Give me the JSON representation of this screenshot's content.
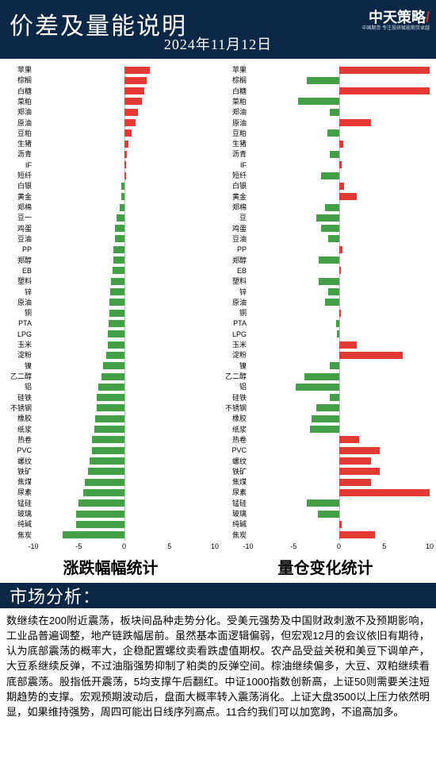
{
  "header": {
    "title": "价差及量能说明",
    "date": "2024年11月12日",
    "logo_main": "中天",
    "logo_suffix": "策略",
    "logo_slash": "/",
    "logo_sub": "中国期货 专注投研赋能期货卓越"
  },
  "axis": {
    "min": -10,
    "max": 10,
    "ticks": [
      -10,
      -5,
      0,
      5,
      10
    ]
  },
  "colors": {
    "pos": "#e53935",
    "neg": "#43a047",
    "bg": "#ffffff",
    "header_bg": "#0a2845"
  },
  "left_chart": {
    "title": "涨跌幅幅统计",
    "rows": [
      {
        "label": "苹果",
        "v": 2.8
      },
      {
        "label": "棕榈",
        "v": 2.5
      },
      {
        "label": "白糖",
        "v": 2.2
      },
      {
        "label": "菜粕",
        "v": 2.0
      },
      {
        "label": "郑油",
        "v": 1.5
      },
      {
        "label": "原油",
        "v": 1.3
      },
      {
        "label": "豆粕",
        "v": 0.8
      },
      {
        "label": "生猪",
        "v": 0.5
      },
      {
        "label": "沥青",
        "v": 0.3
      },
      {
        "label": "IF",
        "v": 0.2
      },
      {
        "label": "短纤",
        "v": 0.2
      },
      {
        "label": "白银",
        "v": -0.3
      },
      {
        "label": "黄金",
        "v": -0.3
      },
      {
        "label": "郑棉",
        "v": -0.5
      },
      {
        "label": "豆一",
        "v": -0.8
      },
      {
        "label": "鸡蛋",
        "v": -1.0
      },
      {
        "label": "豆油",
        "v": -1.0
      },
      {
        "label": "PP",
        "v": -1.2
      },
      {
        "label": "郑醇",
        "v": -1.2
      },
      {
        "label": "EB",
        "v": -1.3
      },
      {
        "label": "塑料",
        "v": -1.4
      },
      {
        "label": "锌",
        "v": -1.5
      },
      {
        "label": "原油",
        "v": -1.6
      },
      {
        "label": "铜",
        "v": -1.6
      },
      {
        "label": "PTA",
        "v": -1.7
      },
      {
        "label": "LPG",
        "v": -1.8
      },
      {
        "label": "玉米",
        "v": -1.8
      },
      {
        "label": "淀粉",
        "v": -2.0
      },
      {
        "label": "镍",
        "v": -2.3
      },
      {
        "label": "乙二醇",
        "v": -2.5
      },
      {
        "label": "铝",
        "v": -2.8
      },
      {
        "label": "硅铁",
        "v": -3.0
      },
      {
        "label": "不锈钢",
        "v": -3.0
      },
      {
        "label": "橡胶",
        "v": -3.2
      },
      {
        "label": "纸浆",
        "v": -3.3
      },
      {
        "label": "热卷",
        "v": -3.5
      },
      {
        "label": "PVC",
        "v": -3.5
      },
      {
        "label": "螺纹",
        "v": -3.8
      },
      {
        "label": "铁矿",
        "v": -4.0
      },
      {
        "label": "焦煤",
        "v": -4.3
      },
      {
        "label": "尿素",
        "v": -4.5
      },
      {
        "label": "锰硅",
        "v": -5.0
      },
      {
        "label": "玻璃",
        "v": -5.3
      },
      {
        "label": "纯碱",
        "v": -5.3
      },
      {
        "label": "焦炭",
        "v": -6.8
      }
    ]
  },
  "right_chart": {
    "title": "量仓变化统计",
    "rows": [
      {
        "label": "苹果",
        "v": 10
      },
      {
        "label": "棕榈",
        "v": -3.5
      },
      {
        "label": "白糖",
        "v": 10
      },
      {
        "label": "菜粕",
        "v": -4.5
      },
      {
        "label": "郑油",
        "v": -1.0
      },
      {
        "label": "原油",
        "v": 3.5
      },
      {
        "label": "豆粕",
        "v": -1.3
      },
      {
        "label": "生猪",
        "v": 0.5
      },
      {
        "label": "沥青",
        "v": -1.0
      },
      {
        "label": "IF",
        "v": 0.3
      },
      {
        "label": "短纤",
        "v": -2.0
      },
      {
        "label": "白银",
        "v": 0.6
      },
      {
        "label": "黄金",
        "v": 2.0
      },
      {
        "label": "郑棉",
        "v": -1.5
      },
      {
        "label": "豆",
        "v": -2.5
      },
      {
        "label": "鸡蛋",
        "v": -2.0
      },
      {
        "label": "豆油",
        "v": -1.2
      },
      {
        "label": "PP",
        "v": 0.4
      },
      {
        "label": "郑醇",
        "v": -2.2
      },
      {
        "label": "EB",
        "v": 0.2
      },
      {
        "label": "塑料",
        "v": -2.2
      },
      {
        "label": "锌",
        "v": -1.2
      },
      {
        "label": "原油",
        "v": -1.5
      },
      {
        "label": "铜",
        "v": 0.2
      },
      {
        "label": "PTA",
        "v": -0.3
      },
      {
        "label": "LPG",
        "v": -0.2
      },
      {
        "label": "玉米",
        "v": 2.0
      },
      {
        "label": "淀粉",
        "v": 7.0
      },
      {
        "label": "镍",
        "v": -1.0
      },
      {
        "label": "乙二醇",
        "v": -3.8
      },
      {
        "label": "铝",
        "v": -4.8
      },
      {
        "label": "硅铁",
        "v": -1.0
      },
      {
        "label": "不锈钢",
        "v": -2.5
      },
      {
        "label": "橡胶",
        "v": -3.0
      },
      {
        "label": "纸浆",
        "v": -3.2
      },
      {
        "label": "热卷",
        "v": 2.2
      },
      {
        "label": "PVC",
        "v": 4.5
      },
      {
        "label": "螺纹",
        "v": 3.5
      },
      {
        "label": "铁矿",
        "v": 4.5
      },
      {
        "label": "焦煤",
        "v": 3.5
      },
      {
        "label": "尿素",
        "v": 10
      },
      {
        "label": "锰硅",
        "v": -3.5
      },
      {
        "label": "玻璃",
        "v": -2.3
      },
      {
        "label": "纯碱",
        "v": 0.3
      },
      {
        "label": "焦炭",
        "v": 4.0
      }
    ]
  },
  "section": {
    "title": "市场分析："
  },
  "analysis": {
    "text": "数继续在200附近震荡，板块间品种走势分化。受美元强势及中国财政刺激不及预期影响，工业品普遍调整，地产链跌幅居前。虽然基本面逻辑偏弱，但宏观12月的会议依旧有期待，认为底部震荡的概率大，企稳配置螺纹卖看跌虚值期权。农产品受益关税和美豆下调单产，大豆系继续反弹，不过油脂强势抑制了粕类的反弹空间。棕油继续偏多，大豆、双粕继续看底部震荡。股指低开震荡，5均支撑午后翻红。中证1000指数创新高，上证50则需要关注短期趋势的支撑。宏观预期波动后，盘面大概率转入震荡消化。上证大盘3500以上压力依然明显，如果维持强势，周四可能出日线序列高点。11合约我们可以加宽跨，不追高加多。"
  }
}
